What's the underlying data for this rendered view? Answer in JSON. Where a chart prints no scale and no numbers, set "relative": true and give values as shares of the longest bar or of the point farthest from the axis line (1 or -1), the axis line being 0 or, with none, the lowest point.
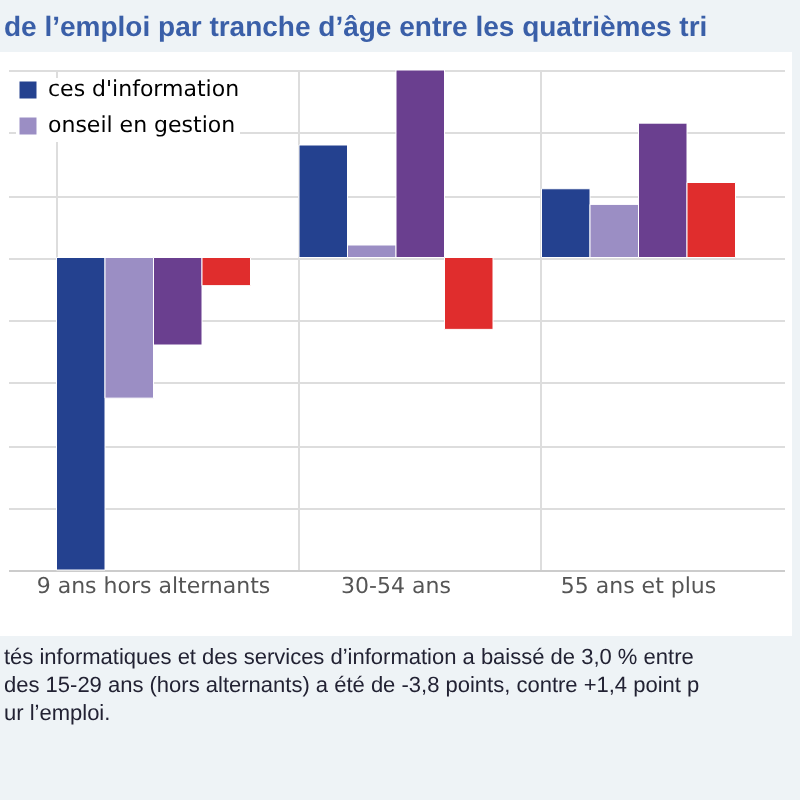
{
  "chart_data": {
    "type": "bar",
    "title": "de l’emploi par tranche d’âge entre les quatrièmes tri",
    "categories": [
      "9 ans hors alternants",
      "30-54 ans",
      "55 ans et plus"
    ],
    "relative": true,
    "grid": true,
    "legend": "top left",
    "series": [
      {
        "name": "ces d'information",
        "color": "#24418f",
        "values": [
          -1,
          0.36,
          0.22
        ]
      },
      {
        "name": "onseil en gestion",
        "color": "#9b8ec4",
        "values": [
          -0.45,
          0.04,
          0.17
        ]
      },
      {
        "color": "#6a3f8f",
        "values": [
          -0.28,
          0.6,
          0.43
        ]
      },
      {
        "color": "#e02d2d",
        "values": [
          -0.09,
          -0.23,
          0.24
        ]
      }
    ],
    "annotations": [
      "tés informatiques et des services d’information a baissé de 3,0 % entre",
      "des 15-29 ans (hors alternants) a été de -3,8 points, contre +1,4 point p",
      "ur l’emploi."
    ]
  }
}
